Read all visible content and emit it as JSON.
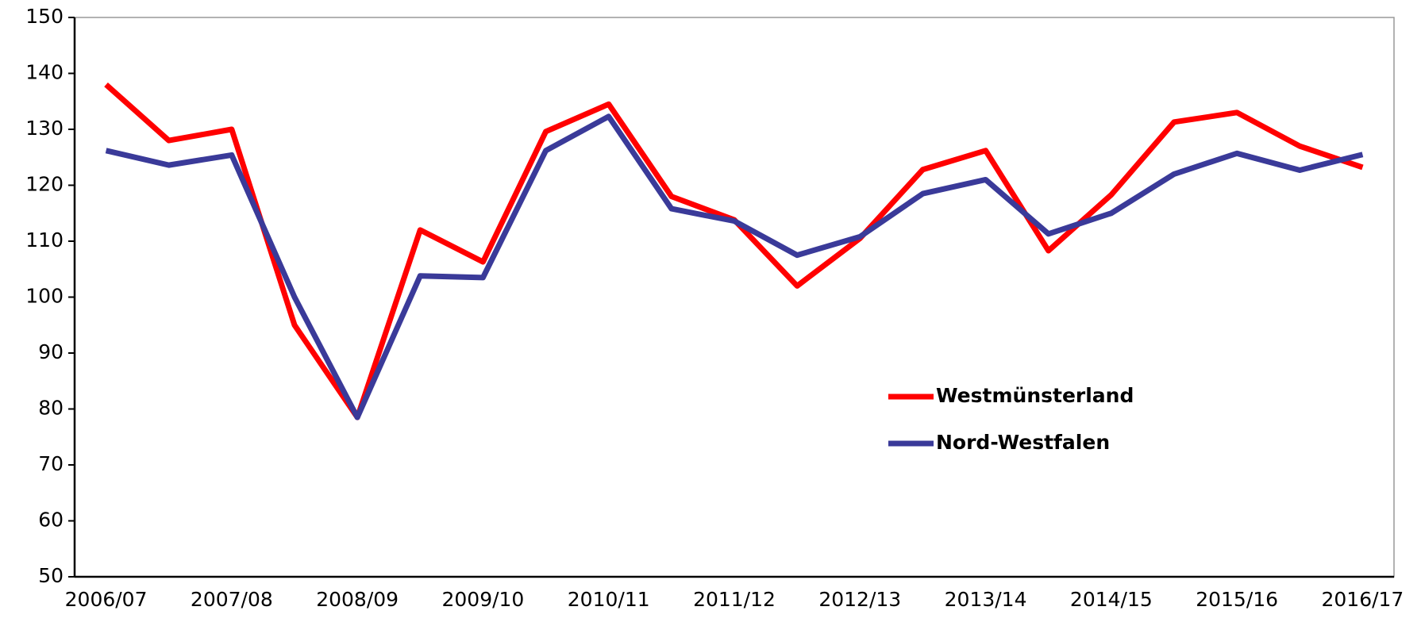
{
  "chart_data": {
    "type": "line",
    "categories": [
      "2006/07",
      null,
      "2007/08",
      null,
      "2008/09",
      null,
      "2009/10",
      null,
      "2010/11",
      null,
      "2011/12",
      null,
      "2012/13",
      null,
      "2013/14",
      null,
      "2014/15",
      null,
      "2015/16",
      null,
      "2016/17"
    ],
    "series": [
      {
        "name": "Westmünsterland",
        "color": "#ff0000",
        "values": [
          138,
          128,
          130,
          95,
          78.5,
          112,
          106.3,
          129.6,
          134.5,
          118,
          113.8,
          102,
          110.5,
          122.8,
          126.2,
          108.3,
          118.3,
          131.3,
          133,
          127,
          123.2
        ]
      },
      {
        "name": "Nord-Westfalen",
        "color": "#3a3a99",
        "values": [
          126.2,
          123.6,
          125.4,
          100,
          78.5,
          103.8,
          103.5,
          126.2,
          132.3,
          115.8,
          113.6,
          107.5,
          110.8,
          118.5,
          121,
          111.3,
          115,
          122,
          125.7,
          122.7,
          125.5
        ]
      }
    ],
    "ylim": [
      50,
      150
    ],
    "yticks": [
      50,
      60,
      70,
      80,
      90,
      100,
      110,
      120,
      130,
      140,
      150
    ],
    "grid": false,
    "legend": "right"
  }
}
